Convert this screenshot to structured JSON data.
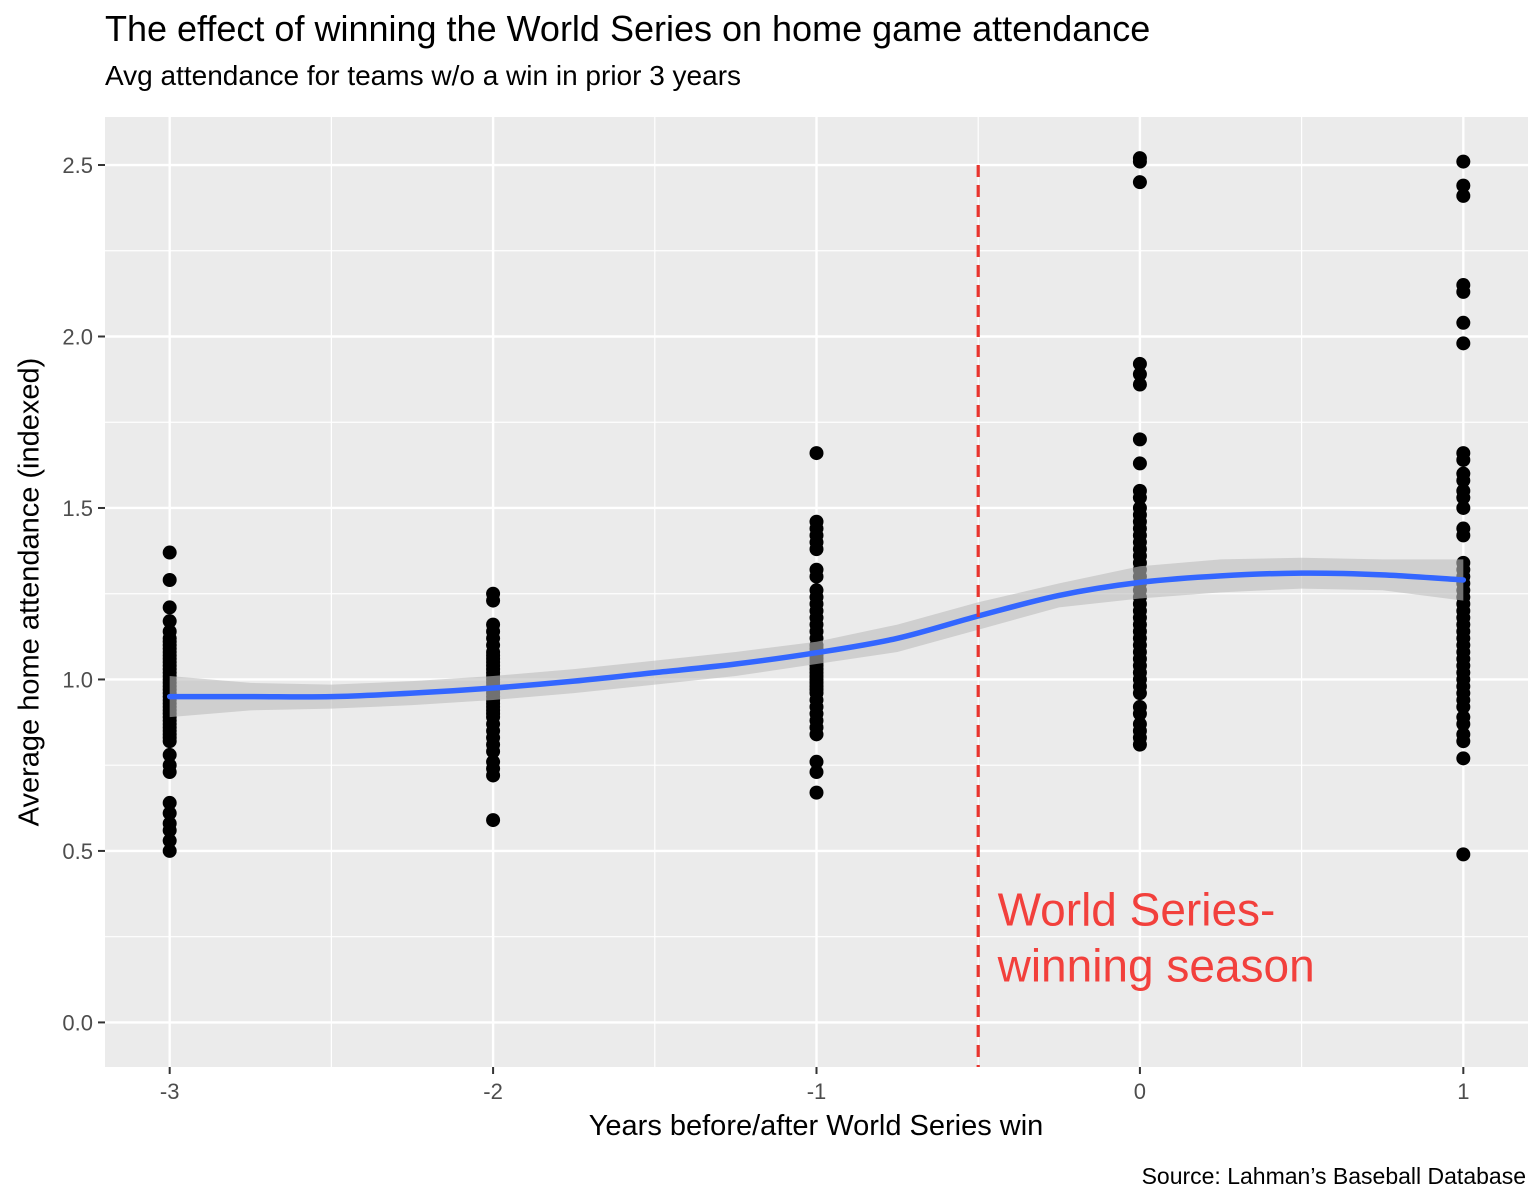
{
  "chart_data": {
    "type": "scatter",
    "title": "The effect of winning the World Series on home game attendance",
    "subtitle": "Avg attendance for teams w/o a win in prior 3 years",
    "xlabel": "Years before/after World Series win",
    "ylabel": "Average home attendance (indexed)",
    "caption": "Source: Lahman’s Baseball Database",
    "xlim": [
      -3.2,
      1.2
    ],
    "ylim": [
      -0.13,
      2.64
    ],
    "x_ticks": [
      -3,
      -2,
      -1,
      0,
      1
    ],
    "x_tick_labels": [
      "-3",
      "-2",
      "-1",
      "0",
      "1"
    ],
    "y_ticks": [
      0.0,
      0.5,
      1.0,
      1.5,
      2.0,
      2.5
    ],
    "y_tick_labels": [
      "0.0",
      "0.5",
      "1.0",
      "1.5",
      "2.0",
      "2.5"
    ],
    "grid": true,
    "points": [
      {
        "x": -3,
        "y": [
          1.37,
          1.29,
          1.21,
          1.17,
          1.14,
          1.12,
          1.11,
          1.1,
          1.09,
          1.08,
          1.07,
          1.06,
          1.05,
          1.04,
          1.03,
          1.02,
          1.01,
          1.0,
          0.99,
          0.98,
          0.97,
          0.96,
          0.95,
          0.94,
          0.93,
          0.92,
          0.91,
          0.9,
          0.89,
          0.88,
          0.87,
          0.86,
          0.85,
          0.84,
          0.83,
          0.82,
          0.78,
          0.75,
          0.73,
          0.64,
          0.61,
          0.58,
          0.56,
          0.53,
          0.5
        ]
      },
      {
        "x": -2,
        "y": [
          1.25,
          1.23,
          1.16,
          1.14,
          1.12,
          1.1,
          1.08,
          1.07,
          1.06,
          1.05,
          1.04,
          1.03,
          1.02,
          1.01,
          1.0,
          0.99,
          0.98,
          0.97,
          0.96,
          0.95,
          0.94,
          0.93,
          0.92,
          0.91,
          0.9,
          0.89,
          0.87,
          0.85,
          0.83,
          0.81,
          0.79,
          0.76,
          0.74,
          0.72,
          0.59
        ]
      },
      {
        "x": -1,
        "y": [
          1.66,
          1.46,
          1.44,
          1.42,
          1.4,
          1.38,
          1.32,
          1.3,
          1.26,
          1.24,
          1.22,
          1.2,
          1.18,
          1.16,
          1.14,
          1.12,
          1.1,
          1.09,
          1.08,
          1.07,
          1.06,
          1.05,
          1.04,
          1.03,
          1.02,
          1.01,
          1.0,
          0.99,
          0.98,
          0.97,
          0.96,
          0.94,
          0.92,
          0.9,
          0.88,
          0.86,
          0.84,
          0.76,
          0.73,
          0.67
        ]
      },
      {
        "x": 0,
        "y": [
          2.52,
          2.51,
          2.45,
          1.92,
          1.89,
          1.86,
          1.7,
          1.63,
          1.55,
          1.53,
          1.5,
          1.48,
          1.46,
          1.44,
          1.42,
          1.4,
          1.38,
          1.36,
          1.34,
          1.32,
          1.3,
          1.28,
          1.26,
          1.24,
          1.22,
          1.2,
          1.18,
          1.16,
          1.14,
          1.12,
          1.1,
          1.08,
          1.06,
          1.04,
          1.02,
          1.0,
          0.98,
          0.96,
          0.92,
          0.9,
          0.87,
          0.85,
          0.83,
          0.81
        ]
      },
      {
        "x": 1,
        "y": [
          2.51,
          2.44,
          2.41,
          2.15,
          2.13,
          2.04,
          1.98,
          1.66,
          1.64,
          1.6,
          1.58,
          1.55,
          1.53,
          1.5,
          1.44,
          1.42,
          1.34,
          1.32,
          1.3,
          1.28,
          1.26,
          1.24,
          1.22,
          1.2,
          1.18,
          1.16,
          1.14,
          1.12,
          1.1,
          1.08,
          1.06,
          1.04,
          1.02,
          1.0,
          0.98,
          0.96,
          0.94,
          0.92,
          0.89,
          0.87,
          0.84,
          0.82,
          0.77,
          0.49
        ]
      }
    ],
    "smooth": {
      "x": [
        -3.0,
        -2.75,
        -2.5,
        -2.25,
        -2.0,
        -1.75,
        -1.5,
        -1.25,
        -1.0,
        -0.75,
        -0.5,
        -0.25,
        0.0,
        0.25,
        0.5,
        0.75,
        1.0
      ],
      "y": [
        0.95,
        0.95,
        0.95,
        0.96,
        0.975,
        0.995,
        1.02,
        1.045,
        1.078,
        1.12,
        1.185,
        1.245,
        1.283,
        1.302,
        1.31,
        1.305,
        1.29
      ],
      "se_upper": [
        1.01,
        0.99,
        0.985,
        0.995,
        1.01,
        1.03,
        1.055,
        1.08,
        1.11,
        1.16,
        1.225,
        1.28,
        1.33,
        1.35,
        1.355,
        1.35,
        1.35
      ],
      "se_lower": [
        0.89,
        0.91,
        0.915,
        0.925,
        0.94,
        0.96,
        0.985,
        1.01,
        1.045,
        1.08,
        1.145,
        1.21,
        1.236,
        1.254,
        1.265,
        1.26,
        1.23
      ],
      "color": "#3366ff",
      "band_color": "#bdbdbd"
    },
    "vline": {
      "x": -0.5,
      "color": "#e8352e",
      "style": "dashed"
    },
    "annotation": {
      "lines": [
        "World Series-",
        "winning season"
      ],
      "x": -0.44,
      "y": 0.12,
      "color": "#f2403c"
    },
    "point_color": "#000000",
    "panel_background": "#ebebeb"
  }
}
